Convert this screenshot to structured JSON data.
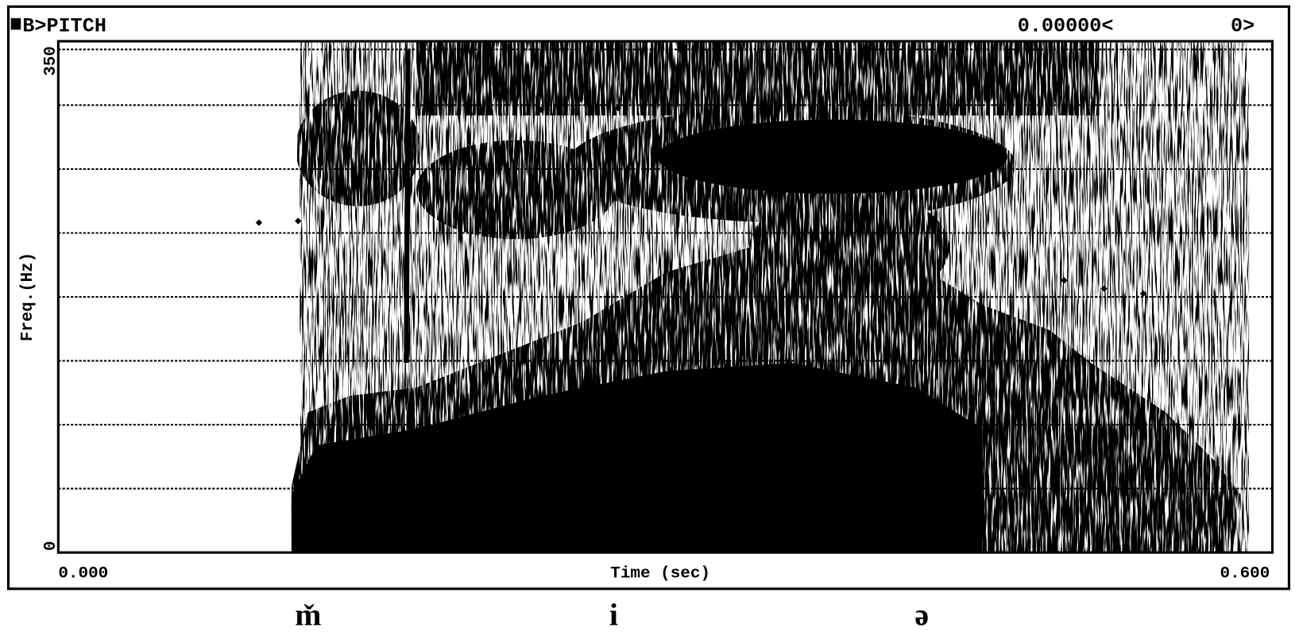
{
  "header": {
    "title": "B>PITCH",
    "cursor_value": "0.00000<",
    "channel": "0>"
  },
  "y_axis": {
    "label": "Freq.(Hz)",
    "max": "350",
    "min": "0"
  },
  "x_axis": {
    "label": "Time (sec)",
    "min": "0.000",
    "max": "0.600"
  },
  "segments": [
    "m̌",
    "i",
    "ə"
  ]
}
